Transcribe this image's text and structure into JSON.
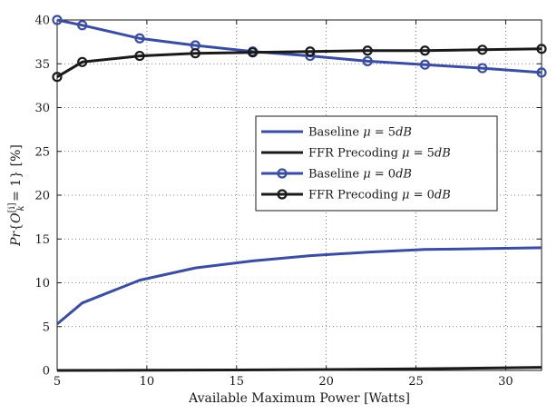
{
  "chart_data": {
    "type": "line",
    "xlabel": "Available Maximum Power [Watts]",
    "ylabel_parts": {
      "p": "Pr",
      "brace_open": "{",
      "o": "O",
      "sup": "[i]",
      "sub": "k",
      "eq": " = 1} ",
      "pct": "[%]"
    },
    "xlim": [
      5,
      32
    ],
    "ylim": [
      0,
      40
    ],
    "xticks": [
      5,
      10,
      15,
      20,
      25,
      30
    ],
    "yticks": [
      0,
      5,
      10,
      15,
      20,
      25,
      30,
      35,
      40
    ],
    "grid": true,
    "legend_position": "center-right",
    "series": [
      {
        "name": "Baseline μ = 5dB",
        "legend": {
          "pre": "Baseline ",
          "mu": "μ",
          "mid": " = 5",
          "unit": "dB"
        },
        "color": "#3a4da0",
        "marker": "none",
        "x": [
          5,
          6.4,
          9.6,
          12.7,
          15.9,
          19.1,
          22.3,
          25.5,
          28.7,
          32
        ],
        "y": [
          5.3,
          7.7,
          10.3,
          11.7,
          12.5,
          13.1,
          13.5,
          13.8,
          13.9,
          14.0
        ]
      },
      {
        "name": "FFR Precoding μ = 5dB",
        "legend": {
          "pre": "FFR Precoding ",
          "mu": "μ",
          "mid": " = 5",
          "unit": "dB"
        },
        "color": "#1a1a1a",
        "marker": "none",
        "x": [
          5,
          10,
          15,
          20,
          25,
          28,
          32
        ],
        "y": [
          0.0,
          0.02,
          0.05,
          0.1,
          0.18,
          0.25,
          0.35
        ]
      },
      {
        "name": "Baseline μ = 0dB",
        "legend": {
          "pre": "Baseline ",
          "mu": "μ",
          "mid": " = 0",
          "unit": "dB"
        },
        "color": "#3a4da0",
        "marker": "circle",
        "x": [
          5,
          6.4,
          9.6,
          12.7,
          15.9,
          19.1,
          22.3,
          25.5,
          28.7,
          32
        ],
        "y": [
          40.0,
          39.4,
          37.9,
          37.1,
          36.4,
          35.9,
          35.3,
          34.9,
          34.5,
          34.0
        ]
      },
      {
        "name": "FFR Precoding μ = 0dB",
        "legend": {
          "pre": "FFR Precoding ",
          "mu": "μ",
          "mid": " = 0",
          "unit": "dB"
        },
        "color": "#1a1a1a",
        "marker": "circle",
        "x": [
          5,
          6.4,
          9.6,
          12.7,
          15.9,
          19.1,
          22.3,
          25.5,
          28.7,
          32
        ],
        "y": [
          33.5,
          35.2,
          35.9,
          36.2,
          36.3,
          36.4,
          36.5,
          36.5,
          36.6,
          36.7
        ]
      }
    ]
  }
}
